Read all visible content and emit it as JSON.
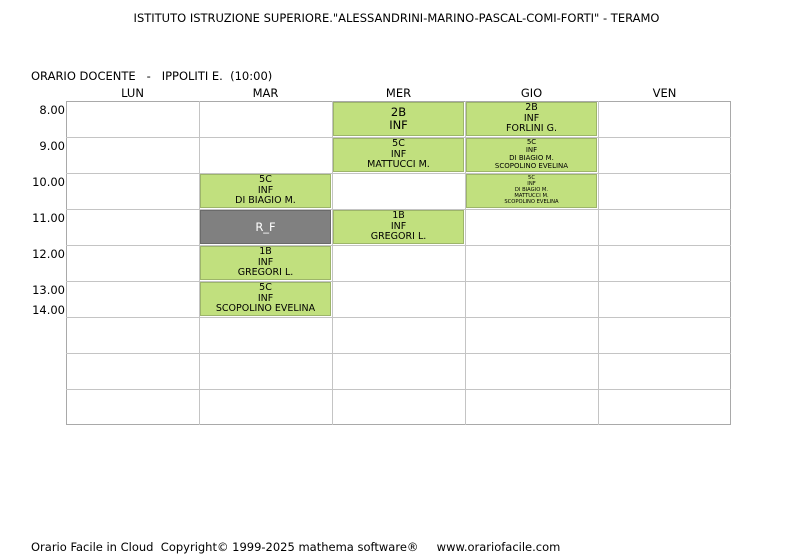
{
  "header": {
    "school": "ISTITUTO ISTRUZIONE SUPERIORE.\"ALESSANDRINI-MARINO-PASCAL-COMI-FORTI\" - TERAMO",
    "teacher_line": "ORARIO DOCENTE   -   IPPOLITI E.  (10:00)"
  },
  "days": [
    "LUN",
    "MAR",
    "MER",
    "GIO",
    "VEN"
  ],
  "times": [
    "8.00",
    "9.00",
    "10.00",
    "11.00",
    "12.00",
    "13.00",
    "14.00"
  ],
  "lessons": [
    {
      "day": "MER",
      "slot": "8.00",
      "lines": [
        "2B",
        "INF"
      ]
    },
    {
      "day": "GIO",
      "slot": "8.00",
      "lines": [
        "2B",
        "INF",
        "FORLINI G."
      ]
    },
    {
      "day": "MER",
      "slot": "9.00",
      "lines": [
        "5C",
        "INF",
        "MATTUCCI M."
      ]
    },
    {
      "day": "GIO",
      "slot": "9.00",
      "lines": [
        "5C",
        "INF",
        "DI BIAGIO M.",
        "SCOPOLINO EVELINA"
      ]
    },
    {
      "day": "MAR",
      "slot": "10.00",
      "lines": [
        "5C",
        "INF",
        "DI BIAGIO M."
      ]
    },
    {
      "day": "GIO",
      "slot": "10.00",
      "lines": [
        "5C",
        "INF",
        "DI BIAGIO M.",
        "MATTUCCI M.",
        "SCOPOLINO EVELINA"
      ]
    },
    {
      "day": "MAR",
      "slot": "11.00",
      "lines": [
        "R_F"
      ],
      "style": "gray"
    },
    {
      "day": "MER",
      "slot": "11.00",
      "lines": [
        "1B",
        "INF",
        "GREGORI L."
      ]
    },
    {
      "day": "MAR",
      "slot": "12.00",
      "lines": [
        "1B",
        "INF",
        "GREGORI L."
      ]
    },
    {
      "day": "MAR",
      "slot": "13.00",
      "lines": [
        "5C",
        "INF",
        "SCOPOLINO EVELINA"
      ]
    }
  ],
  "footer": "Orario Facile in Cloud  Copyright© 1999-2025 mathema software®     www.orariofacile.com"
}
